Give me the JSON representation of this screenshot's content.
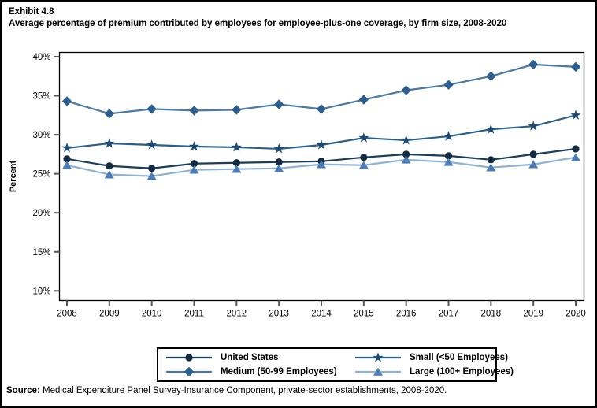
{
  "header": {
    "exhibit": "Exhibit 4.8",
    "title": "Average percentage of premium contributed by employees for employee-plus-one coverage, by firm size, 2008-2020"
  },
  "chart_data": {
    "type": "line",
    "title": "Average percentage of premium contributed by employees for employee-plus-one coverage, by firm size, 2008-2020",
    "xlabel": "",
    "ylabel": "Percent",
    "ylim": [
      10,
      40
    ],
    "yticks": [
      10,
      15,
      20,
      25,
      30,
      35,
      40
    ],
    "ytick_suffix": "%",
    "grid": false,
    "legend_position": "bottom-boxed",
    "categories": [
      "2008",
      "2009",
      "2010",
      "2011",
      "2012",
      "2013",
      "2014",
      "2015",
      "2016",
      "2017",
      "2018",
      "2019",
      "2020"
    ],
    "series": [
      {
        "name": "United States",
        "marker": "circle",
        "marker_color": "#122b41",
        "line_color": "#1b3d5c",
        "values": [
          26.9,
          26.0,
          25.7,
          26.3,
          26.4,
          26.5,
          26.6,
          27.1,
          27.5,
          27.3,
          26.8,
          27.5,
          28.2
        ]
      },
      {
        "name": "Medium (50-99 Employees)",
        "marker": "diamond",
        "marker_color": "#2c5f8e",
        "line_color": "#4a7aa5",
        "values": [
          34.3,
          32.7,
          33.3,
          33.1,
          33.2,
          33.9,
          33.3,
          34.5,
          35.7,
          36.4,
          37.5,
          39.0,
          38.7
        ]
      },
      {
        "name": "Small (<50 Employees)",
        "marker": "star",
        "marker_color": "#1c4a72",
        "line_color": "#2a5f8a",
        "values": [
          28.3,
          28.9,
          28.7,
          28.5,
          28.4,
          28.2,
          28.7,
          29.6,
          29.3,
          29.8,
          30.7,
          31.1,
          32.5
        ]
      },
      {
        "name": "Large (100+ Employees)",
        "marker": "triangle",
        "marker_color": "#4a7db8",
        "line_color": "#8fb2d4",
        "values": [
          26.1,
          24.9,
          24.7,
          25.5,
          25.6,
          25.7,
          26.2,
          26.1,
          26.8,
          26.5,
          25.8,
          26.2,
          27.1
        ]
      }
    ],
    "axis_color": "#000000",
    "tick_color": "#595959"
  },
  "footer": {
    "source_label": "Source:",
    "source_text": " Medical Expenditure Panel Survey-Insurance Component, private-sector establishments, 2008-2020."
  }
}
